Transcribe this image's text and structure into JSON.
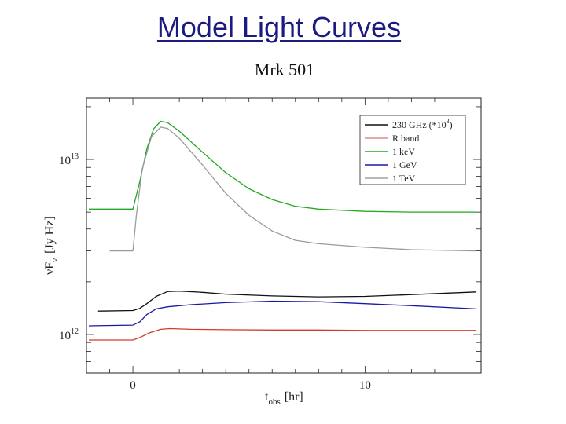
{
  "slide": {
    "title": "Model Light Curves"
  },
  "chart_data": {
    "type": "line",
    "title": "Mrk 501",
    "xlabel_main": "t",
    "xlabel_sub": "obs",
    "xlabel_unit": "[hr]",
    "ylabel_main": "νF",
    "ylabel_sub": "ν",
    "ylabel_unit": "[Jy Hz]",
    "xlim": [
      -2,
      15
    ],
    "ylim_log10": [
      11.78,
      13.35
    ],
    "y_scale": "log",
    "x_ticks": [
      {
        "value": 0,
        "label": "0"
      },
      {
        "value": 10,
        "label": "10"
      }
    ],
    "y_ticks": [
      {
        "exp": 12,
        "base": "10",
        "sup": "12"
      },
      {
        "exp": 13,
        "base": "10",
        "sup": "13"
      }
    ],
    "legend_position": "top-right",
    "legend": [
      {
        "label": "230 GHz (*10",
        "sup": "3",
        "tail": ")",
        "color": "#111111"
      },
      {
        "label": "R band",
        "color": "#e08a8a"
      },
      {
        "label": "1 keV",
        "color": "#22aa22"
      },
      {
        "label": "1 GeV",
        "color": "#1a1aa0"
      },
      {
        "label": "1 TeV",
        "color": "#a0a0a0"
      }
    ],
    "series": [
      {
        "name": "230 GHz (*10^3)",
        "color": "#111111",
        "x": [
          -1.5,
          0,
          0.3,
          0.6,
          1.0,
          1.5,
          2.0,
          3.0,
          4.0,
          6.0,
          8.0,
          10.0,
          12.0,
          14.8
        ],
        "y": [
          1360000000000.0,
          1370000000000.0,
          1410000000000.0,
          1500000000000.0,
          1650000000000.0,
          1760000000000.0,
          1770000000000.0,
          1740000000000.0,
          1700000000000.0,
          1660000000000.0,
          1640000000000.0,
          1650000000000.0,
          1690000000000.0,
          1750000000000.0
        ]
      },
      {
        "name": "R band",
        "color": "#d43a2a",
        "x": [
          -1.9,
          0,
          0.3,
          0.7,
          1.2,
          1.6,
          2.5,
          4.0,
          6.0,
          8.0,
          10.0,
          12.0,
          14.8
        ],
        "y": [
          930000000000.0,
          930000000000.0,
          960000000000.0,
          1020000000000.0,
          1070000000000.0,
          1080000000000.0,
          1070000000000.0,
          1065000000000.0,
          1060000000000.0,
          1060000000000.0,
          1055000000000.0,
          1055000000000.0,
          1055000000000.0
        ]
      },
      {
        "name": "1 keV",
        "color": "#22aa22",
        "x": [
          -1.9,
          0,
          0.3,
          0.6,
          0.9,
          1.2,
          1.5,
          2.0,
          3.0,
          4.0,
          5.0,
          6.0,
          7.0,
          8.0,
          10.0,
          12.0,
          14.8
        ],
        "y": [
          5200000000000.0,
          5200000000000.0,
          7500000000000.0,
          11500000000000.0,
          15000000000000.0,
          16500000000000.0,
          16200000000000.0,
          14500000000000.0,
          11000000000000.0,
          8400000000000.0,
          6800000000000.0,
          5900000000000.0,
          5400000000000.0,
          5200000000000.0,
          5050000000000.0,
          5000000000000.0,
          5000000000000.0
        ]
      },
      {
        "name": "1 GeV",
        "color": "#1a1aa0",
        "x": [
          -1.9,
          0,
          0.3,
          0.6,
          1.0,
          1.5,
          2.5,
          4.0,
          6.0,
          8.0,
          10.0,
          12.0,
          14.8
        ],
        "y": [
          1120000000000.0,
          1130000000000.0,
          1180000000000.0,
          1300000000000.0,
          1400000000000.0,
          1440000000000.0,
          1480000000000.0,
          1520000000000.0,
          1550000000000.0,
          1540000000000.0,
          1500000000000.0,
          1460000000000.0,
          1400000000000.0
        ]
      },
      {
        "name": "1 TeV",
        "color": "#9a9aa0",
        "x": [
          -1.0,
          0,
          0.15,
          0.4,
          0.8,
          1.2,
          1.5,
          2.0,
          3.0,
          4.0,
          5.0,
          6.0,
          7.0,
          8.0,
          10.0,
          12.0,
          14.8
        ],
        "y": [
          3000000000000.0,
          3000000000000.0,
          4800000000000.0,
          8800000000000.0,
          13500000000000.0,
          15300000000000.0,
          15000000000000.0,
          13200000000000.0,
          9300000000000.0,
          6400000000000.0,
          4800000000000.0,
          3900000000000.0,
          3450000000000.0,
          3300000000000.0,
          3150000000000.0,
          3050000000000.0,
          3000000000000.0
        ]
      }
    ]
  }
}
